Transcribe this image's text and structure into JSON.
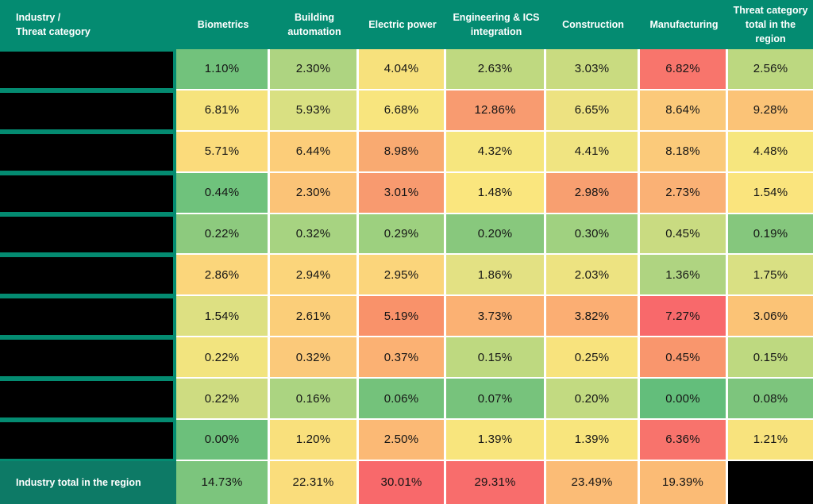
{
  "colors": {
    "header_teal": "#048B71",
    "total_teal": "#0D7A66",
    "redaction_black": "#000000",
    "grid_gap_white": "#FFFFFF",
    "scale_min_green": "#63BE7B",
    "scale_mid_yellow": "#FFEB84",
    "scale_max_red": "#F8696B"
  },
  "table": {
    "corner_header": "Industry /\nThreat category",
    "columns": [
      "Biometrics",
      "Building\nautomation",
      "Electric power",
      "Engineering & ICS\nintegration",
      "Construction",
      "Manufacturing",
      "Threat category\ntotal in the\nregion"
    ],
    "rows": [
      {
        "label_redacted": true,
        "values": [
          "1.10%",
          "2.30%",
          "4.04%",
          "2.63%",
          "3.03%",
          "6.82%",
          "2.56%"
        ],
        "colors": [
          "#72C27C",
          "#AED481",
          "#F7E17C",
          "#BFD980",
          "#C9DB80",
          "#F8756C",
          "#BCD880"
        ]
      },
      {
        "label_redacted": true,
        "values": [
          "6.81%",
          "5.93%",
          "6.68%",
          "12.86%",
          "6.65%",
          "8.64%",
          "9.28%"
        ],
        "colors": [
          "#F6E37D",
          "#D9E082",
          "#F8E57E",
          "#F89B70",
          "#EDE281",
          "#FBC97A",
          "#FBC377"
        ]
      },
      {
        "label_redacted": true,
        "values": [
          "5.71%",
          "6.44%",
          "8.98%",
          "4.32%",
          "4.41%",
          "8.18%",
          "4.48%"
        ],
        "colors": [
          "#FBDB7B",
          "#FCCD79",
          "#F9AA71",
          "#F6E67E",
          "#F0E481",
          "#FBCA7A",
          "#F6E67E"
        ]
      },
      {
        "label_redacted": true,
        "values": [
          "0.44%",
          "2.30%",
          "3.01%",
          "1.48%",
          "2.98%",
          "2.73%",
          "1.54%"
        ],
        "colors": [
          "#6FC27C",
          "#FBC377",
          "#F89A6F",
          "#FAE67E",
          "#F89F70",
          "#FAB175",
          "#FAE47D"
        ]
      },
      {
        "label_redacted": true,
        "values": [
          "0.22%",
          "0.32%",
          "0.29%",
          "0.20%",
          "0.30%",
          "0.45%",
          "0.19%"
        ],
        "colors": [
          "#8DCA7E",
          "#A7D381",
          "#9DD07F",
          "#88C87D",
          "#A0D180",
          "#C9DB81",
          "#85C77D"
        ]
      },
      {
        "label_redacted": true,
        "values": [
          "2.86%",
          "2.94%",
          "2.95%",
          "1.86%",
          "2.03%",
          "1.36%",
          "1.75%"
        ],
        "colors": [
          "#FBD67B",
          "#FBD57B",
          "#FBD57B",
          "#E3E183",
          "#EDE381",
          "#AFD481",
          "#D9E083"
        ]
      },
      {
        "label_redacted": true,
        "values": [
          "1.54%",
          "2.61%",
          "5.19%",
          "3.73%",
          "3.82%",
          "7.27%",
          "3.06%"
        ],
        "colors": [
          "#DDE082",
          "#FBCE79",
          "#F9926A",
          "#FBB173",
          "#FBAE73",
          "#F8696B",
          "#FBC376"
        ]
      },
      {
        "label_redacted": true,
        "values": [
          "0.22%",
          "0.32%",
          "0.37%",
          "0.15%",
          "0.25%",
          "0.45%",
          "0.15%"
        ],
        "colors": [
          "#F2E47F",
          "#FBC97A",
          "#FBB173",
          "#BED980",
          "#F8E37D",
          "#F9966D",
          "#BED980"
        ]
      },
      {
        "label_redacted": true,
        "values": [
          "0.22%",
          "0.16%",
          "0.06%",
          "0.07%",
          "0.20%",
          "0.00%",
          "0.08%"
        ],
        "colors": [
          "#CEDC81",
          "#ABD481",
          "#74C27B",
          "#77C37C",
          "#C2DA81",
          "#63BE7B",
          "#7DC57D"
        ]
      },
      {
        "label_redacted": true,
        "values": [
          "0.00%",
          "1.20%",
          "2.50%",
          "1.39%",
          "1.39%",
          "6.36%",
          "1.21%"
        ],
        "colors": [
          "#6CC07B",
          "#F9E07C",
          "#FBB975",
          "#F8E57D",
          "#F8E57D",
          "#F8736C",
          "#F8E37D"
        ]
      }
    ],
    "total_row": {
      "label": "Industry total in the region",
      "values": [
        "14.73%",
        "22.31%",
        "30.01%",
        "29.31%",
        "23.49%",
        "19.39%"
      ],
      "colors": [
        "#7CC57D",
        "#FADD7C",
        "#F8696B",
        "#F86D6C",
        "#FBBC76",
        "#FBBB75"
      ],
      "last_cell_redacted": true
    }
  },
  "chart_data": {
    "type": "heatmap",
    "title": "Industry / Threat category",
    "columns": [
      "Biometrics",
      "Building automation",
      "Electric power",
      "Engineering & ICS integration",
      "Construction",
      "Manufacturing",
      "Threat category total in the region"
    ],
    "row_labels_redacted": true,
    "units": "%",
    "values": [
      [
        1.1,
        2.3,
        4.04,
        2.63,
        3.03,
        6.82,
        2.56
      ],
      [
        6.81,
        5.93,
        6.68,
        12.86,
        6.65,
        8.64,
        9.28
      ],
      [
        5.71,
        6.44,
        8.98,
        4.32,
        4.41,
        8.18,
        4.48
      ],
      [
        0.44,
        2.3,
        3.01,
        1.48,
        2.98,
        2.73,
        1.54
      ],
      [
        0.22,
        0.32,
        0.29,
        0.2,
        0.3,
        0.45,
        0.19
      ],
      [
        2.86,
        2.94,
        2.95,
        1.86,
        2.03,
        1.36,
        1.75
      ],
      [
        1.54,
        2.61,
        5.19,
        3.73,
        3.82,
        7.27,
        3.06
      ],
      [
        0.22,
        0.32,
        0.37,
        0.15,
        0.25,
        0.45,
        0.15
      ],
      [
        0.22,
        0.16,
        0.06,
        0.07,
        0.2,
        0.0,
        0.08
      ],
      [
        0.0,
        1.2,
        2.5,
        1.39,
        1.39,
        6.36,
        1.21
      ]
    ],
    "total_row": {
      "label": "Industry total in the region",
      "values": [
        14.73,
        22.31,
        30.01,
        29.31,
        23.49,
        19.39,
        null
      ]
    },
    "color_scale": "green (low) → yellow (mid) → red (high)",
    "legend": "none",
    "grid": "white gaps between cells"
  }
}
